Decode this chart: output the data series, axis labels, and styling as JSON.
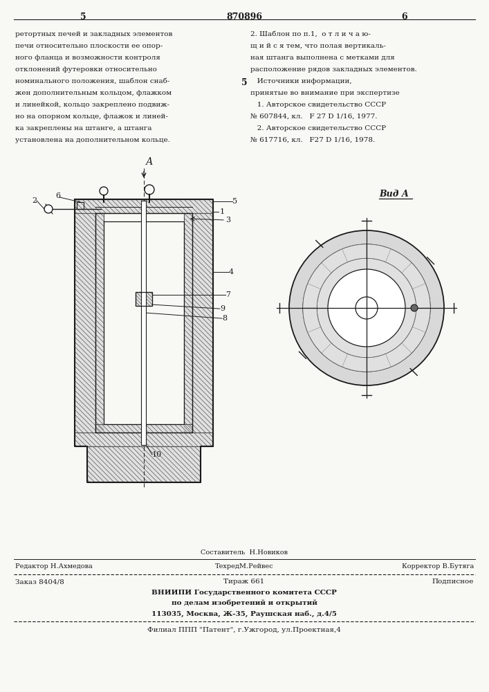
{
  "bg_color": "#f8f8f5",
  "page_width": 7.07,
  "page_height": 10.0,
  "top_text_left": [
    "ретортных печей и закладных элементов",
    "печи относительно плоскости ее опор-",
    "ного фланца и возможности контроля",
    "отклонений футеровки относительно",
    "номинального положения, шаблон снаб-",
    "жен дополнительным кольцом, флажком",
    "и линейкой, кольцо закреплено подвиж-",
    "но на опорном кольце, флажок и линей-",
    "ка закреплены на штанге, а штанга",
    "установлена на дополнительном кольце."
  ],
  "top_text_right": [
    "2. Шаблон по п.1,  о т л и ч а ю-",
    "щ и й с я тем, что полая вертикаль-",
    "ная штанга выполнена с метками для",
    "расположение рядов закладных элементов.",
    "   Источники информации,",
    "принятые во внимание при экспертизе",
    "   1. Авторское свидетельство СССР",
    "№ 607844, кл.   F 27 D 1/16, 1977.",
    "   2. Авторское свидетельство СССР",
    "№ 617716, кл.   F27 D 1/16, 1978."
  ],
  "page_num_left": "5",
  "page_num_center": "870896",
  "page_num_right": "6",
  "line_num_center": "5",
  "footer_composer": "Составитель  Н.Новиков",
  "footer_line1_left": "Редактор Н.Ахмедова",
  "footer_line1_center": "ТехредМ.Рейвес",
  "footer_line1_right": "Корректор В.Бутяга",
  "footer_line2_left": "Заказ 8404/8",
  "footer_line2_center": "Тираж 661",
  "footer_line2_right": "Подписное",
  "footer_line3": "ВНИИПИ Государственного комитета СССР",
  "footer_line4": "по делам изобретений и открытий",
  "footer_line5": "113035, Москва, Ж-35, Раушская наб., д.4/5",
  "footer_line6": "Филиал ППП \"Патент\", г.Ужгород, ул.Проектная,4",
  "drawing_label_A": "А",
  "drawing_label_vid": "Вид А",
  "text_color": "#1a1a1a",
  "line_color": "#1a1a1a"
}
